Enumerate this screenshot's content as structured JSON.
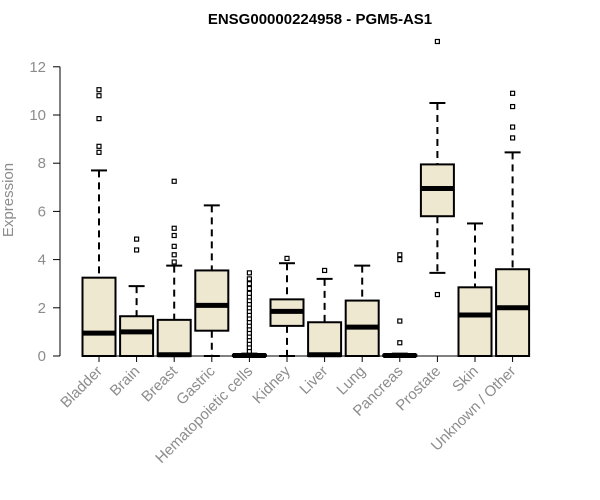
{
  "chart_data": {
    "type": "boxplot",
    "title": "ENSG00000224958 - PGM5-AS1",
    "xlabel": "",
    "ylabel": "Expression",
    "ylim": [
      0,
      12.5
    ],
    "yticks": [
      0,
      2,
      4,
      6,
      8,
      10,
      12
    ],
    "colors": {
      "box_fill": "#efe8d0",
      "stroke": "#000000",
      "axis_text": "#8c8c8c"
    },
    "categories": [
      "Bladder",
      "Brain",
      "Breast",
      "Gastric",
      "Hematopoietic cells",
      "Kidney",
      "Liver",
      "Lung",
      "Pancreas",
      "Prostate",
      "Skin",
      "Unknown / Other"
    ],
    "boxes": [
      {
        "category": "Bladder",
        "min": 0,
        "q1": 0,
        "median": 0.95,
        "q3": 3.25,
        "max": 7.7,
        "outliers": [
          8.45,
          8.7,
          9.85,
          10.8,
          11.05
        ]
      },
      {
        "category": "Brain",
        "min": 0,
        "q1": 0,
        "median": 1.0,
        "q3": 1.65,
        "max": 2.9,
        "outliers": [
          4.4,
          4.85
        ]
      },
      {
        "category": "Breast",
        "min": 0,
        "q1": 0,
        "median": 0.05,
        "q3": 1.5,
        "max": 3.75,
        "outliers": [
          3.9,
          4.2,
          4.55,
          5.0,
          5.3,
          7.25
        ]
      },
      {
        "category": "Gastric",
        "min": 0,
        "q1": 1.05,
        "median": 2.1,
        "q3": 3.55,
        "max": 6.25,
        "outliers": []
      },
      {
        "category": "Hematopoietic cells",
        "min": 0,
        "q1": 0,
        "median": 0.02,
        "q3": 0.05,
        "max": 0.1,
        "outliers": [
          0.2,
          0.35,
          0.5,
          0.65,
          0.8,
          0.95,
          1.1,
          1.25,
          1.4,
          1.55,
          1.7,
          1.85,
          2.0,
          2.15,
          2.3,
          2.45,
          2.6,
          2.8,
          3.0,
          3.2,
          3.45
        ]
      },
      {
        "category": "Kidney",
        "min": 0,
        "q1": 1.25,
        "median": 1.85,
        "q3": 2.35,
        "max": 3.85,
        "outliers": [
          4.05
        ]
      },
      {
        "category": "Liver",
        "min": 0,
        "q1": 0,
        "median": 0.05,
        "q3": 1.4,
        "max": 3.2,
        "outliers": [
          3.55
        ]
      },
      {
        "category": "Lung",
        "min": 0,
        "q1": 0,
        "median": 1.2,
        "q3": 2.3,
        "max": 3.75,
        "outliers": []
      },
      {
        "category": "Pancreas",
        "min": 0,
        "q1": 0,
        "median": 0.02,
        "q3": 0.05,
        "max": 0.1,
        "outliers": [
          0.55,
          1.45,
          4.0,
          4.2
        ]
      },
      {
        "category": "Prostate",
        "min": 3.45,
        "q1": 5.8,
        "median": 6.95,
        "q3": 7.95,
        "max": 10.5,
        "outliers": [
          2.55,
          13.05
        ]
      },
      {
        "category": "Skin",
        "min": 0,
        "q1": 0,
        "median": 1.7,
        "q3": 2.85,
        "max": 5.5,
        "outliers": []
      },
      {
        "category": "Unknown / Other",
        "min": 0,
        "q1": 0,
        "median": 2.0,
        "q3": 3.6,
        "max": 8.45,
        "outliers": [
          9.05,
          9.5,
          10.35,
          10.9
        ]
      }
    ]
  }
}
